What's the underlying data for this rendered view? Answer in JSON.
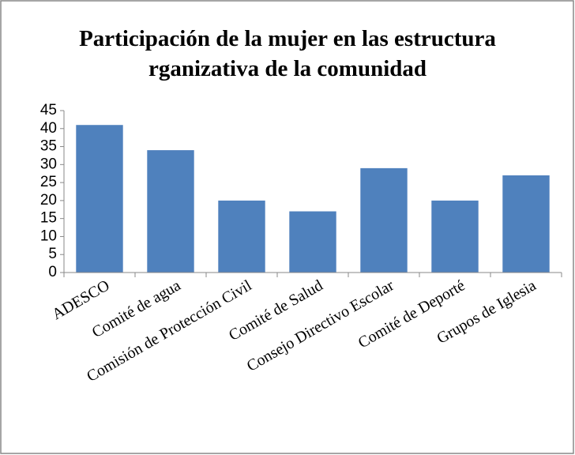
{
  "chart_data": {
    "type": "bar",
    "title": "Participación de la mujer en las estructura rganizativa de la comunidad",
    "categories": [
      "ADESCO",
      "Comité de agua",
      "Comisión de Protección Civil",
      "Comité de Salud",
      "Consejo Directivo Escolar",
      "Comité de Deporté",
      "Grupos de Iglesia"
    ],
    "values": [
      41,
      34,
      20,
      17,
      29,
      20,
      27
    ],
    "color": "#4f81bd",
    "ylim": [
      0,
      45
    ],
    "yticks": [
      0,
      5,
      10,
      15,
      20,
      25,
      30,
      35,
      40,
      45
    ],
    "grid": false
  }
}
